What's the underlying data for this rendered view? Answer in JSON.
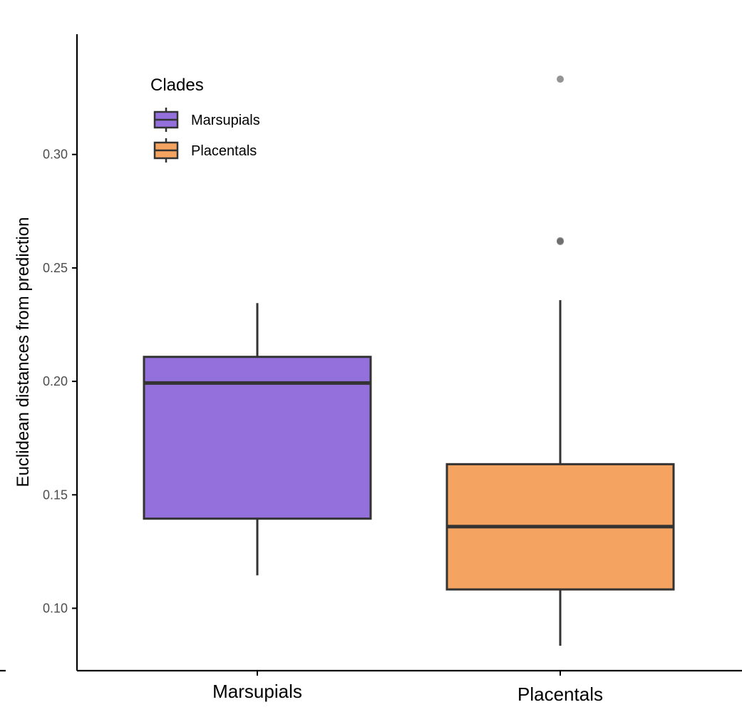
{
  "chart_data": {
    "type": "box",
    "ylabel": "Euclidean distances from prediction",
    "xlabel": "",
    "ylim": [
      0.0725,
      0.353
    ],
    "yticks": [
      0.1,
      0.15,
      0.2,
      0.25,
      0.3
    ],
    "ytick_labels": [
      "0.10",
      "0.15",
      "0.20",
      "0.25",
      "0.30"
    ],
    "categories": [
      "Marsupials",
      "Placentals"
    ],
    "legend": {
      "title": "Clades",
      "placement": "top-left",
      "entries": [
        "Marsupials",
        "Placentals"
      ]
    },
    "boxes": [
      {
        "name": "Marsupials",
        "color": "#9370DB",
        "whisker_low": 0.1145,
        "q1": 0.1395,
        "median": 0.1993,
        "q3": 0.2108,
        "whisker_high": 0.2345,
        "outliers": []
      },
      {
        "name": "Placentals",
        "color": "#F4A460",
        "whisker_low": 0.0835,
        "q1": 0.1083,
        "median": 0.136,
        "q3": 0.1635,
        "whisker_high": 0.2358,
        "outliers": [
          0.3332,
          0.2616,
          0.262
        ]
      }
    ],
    "line_color": "#333333",
    "grid": false
  }
}
